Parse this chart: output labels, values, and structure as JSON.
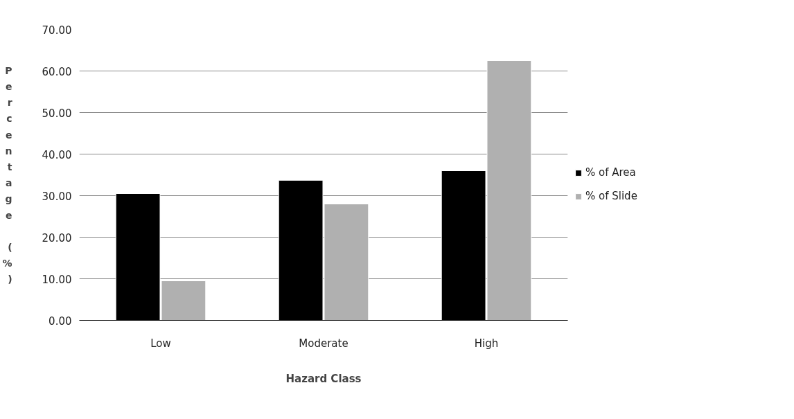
{
  "chart_data": {
    "type": "bar",
    "xlabel": "Hazard Class",
    "ylabel": "Percentage (%)",
    "categories": [
      "Low",
      "Moderate",
      "High"
    ],
    "series": [
      {
        "name": "% of Area",
        "color": "#000000",
        "values": [
          30.5,
          33.7,
          36.0
        ]
      },
      {
        "name": "% of Slide",
        "color": "#b0b0b0",
        "values": [
          9.5,
          28.0,
          62.5
        ]
      }
    ],
    "ylim": [
      0,
      70
    ],
    "yticks": [
      {
        "value": 0,
        "label": "0.00"
      },
      {
        "value": 10,
        "label": "10.00"
      },
      {
        "value": 20,
        "label": "20.00"
      },
      {
        "value": 30,
        "label": "30.00"
      },
      {
        "value": 40,
        "label": "40.00"
      },
      {
        "value": 50,
        "label": "50.00"
      },
      {
        "value": 60,
        "label": "60.00"
      },
      {
        "value": 70,
        "label": "70.00"
      }
    ],
    "grid": "y",
    "legend": "right"
  }
}
